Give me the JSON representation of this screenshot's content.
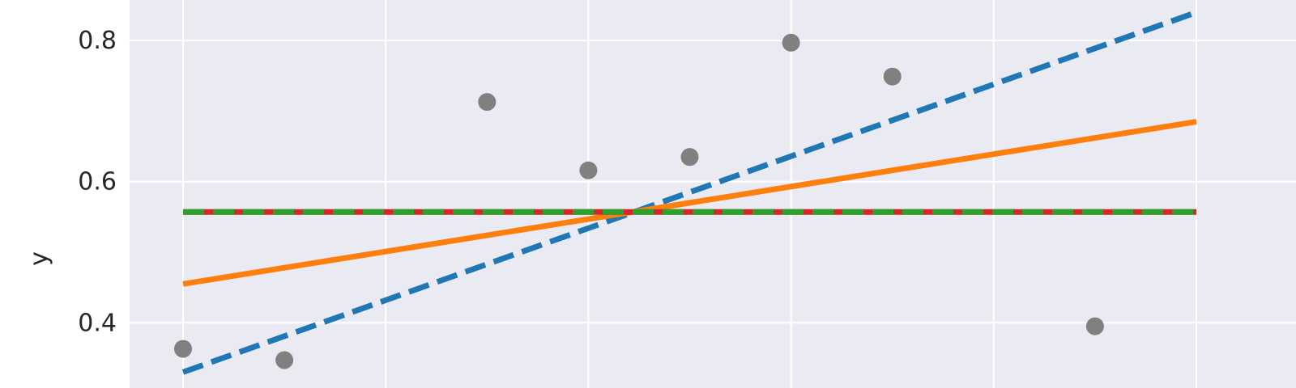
{
  "chart_data": {
    "type": "scatter",
    "ylabel": "y",
    "xlim": [
      0.5,
      10.5
    ],
    "ylim": [
      0.3075,
      0.8575
    ],
    "x_ticks": [
      0.5,
      2.5,
      4.5,
      6.5,
      8.5,
      10.5
    ],
    "y_ticks": [
      0.4,
      0.6,
      0.8
    ],
    "y_tick_labels": [
      "0.4",
      "0.6",
      "0.8"
    ],
    "grid": true,
    "background_color": "#eaeaf2",
    "grid_color": "#ffffff",
    "points": {
      "color": "#808080",
      "x": [
        0.5,
        1.5,
        3.5,
        4.5,
        5.5,
        6.5,
        7.5,
        9.5
      ],
      "y": [
        0.363,
        0.347,
        0.713,
        0.616,
        0.635,
        0.797,
        0.749,
        0.395
      ]
    },
    "lines": [
      {
        "style": "dashed",
        "color": "#1f77b4",
        "x": [
          0.5,
          10.5
        ],
        "y": [
          0.33,
          0.84
        ]
      },
      {
        "style": "solid",
        "color": "#ff7f0e",
        "x": [
          0.5,
          10.5
        ],
        "y": [
          0.455,
          0.685
        ]
      },
      {
        "style": "solid",
        "color": "#d62728",
        "x": [
          0.5,
          10.5
        ],
        "y": [
          0.557,
          0.557
        ]
      },
      {
        "style": "dashed",
        "color": "#2ca02c",
        "x": [
          0.5,
          10.5
        ],
        "y": [
          0.557,
          0.557
        ]
      }
    ]
  }
}
